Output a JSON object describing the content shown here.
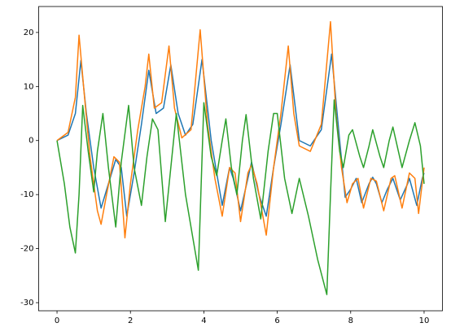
{
  "chart_data": {
    "type": "line",
    "xlim": [
      -0.5,
      10.5
    ],
    "ylim": [
      -31.5,
      24.8
    ],
    "xticks": [
      0,
      2,
      4,
      6,
      8,
      10
    ],
    "yticks": [
      -30,
      -20,
      -10,
      0,
      10,
      20
    ],
    "grid": false,
    "series": [
      {
        "color": "#1f77b4",
        "x": [
          0,
          0.3,
          0.5,
          0.65,
          0.8,
          1.0,
          1.2,
          1.4,
          1.6,
          1.75,
          1.9,
          2.1,
          2.3,
          2.5,
          2.7,
          2.9,
          3.1,
          3.3,
          3.5,
          3.7,
          3.95,
          4.2,
          4.5,
          4.7,
          4.8,
          5.0,
          5.3,
          5.5,
          5.7,
          5.9,
          6.1,
          6.35,
          6.6,
          6.9,
          7.2,
          7.48,
          7.7,
          7.85,
          8.0,
          8.15,
          8.3,
          8.5,
          8.6,
          8.7,
          8.85,
          9.0,
          9.15,
          9.35,
          9.55,
          9.6,
          9.8,
          9.95,
          10
        ],
        "values": [
          0,
          1,
          5,
          14.8,
          5,
          -5,
          -12.5,
          -8,
          -3.5,
          -5,
          -14,
          -6,
          3,
          13,
          5,
          6,
          14,
          5,
          1,
          3,
          15,
          0,
          -12,
          -5,
          -7,
          -13,
          -4,
          -10,
          -14,
          -5,
          3,
          14,
          0,
          -1,
          2,
          16,
          0,
          -10.5,
          -9,
          -7,
          -11.5,
          -8,
          -6.8,
          -8,
          -11.5,
          -9,
          -7,
          -11,
          -8,
          -7,
          -12,
          -7,
          -6
        ]
      },
      {
        "color": "#ff7f0e",
        "x": [
          0,
          0.3,
          0.5,
          0.6,
          0.75,
          0.9,
          1.1,
          1.2,
          1.35,
          1.55,
          1.7,
          1.85,
          2.0,
          2.2,
          2.4,
          2.5,
          2.65,
          2.85,
          3.05,
          3.2,
          3.4,
          3.65,
          3.9,
          4.1,
          4.3,
          4.5,
          4.7,
          4.85,
          5.0,
          5.2,
          5.3,
          5.45,
          5.7,
          5.9,
          6.1,
          6.3,
          6.45,
          6.6,
          6.9,
          7.2,
          7.45,
          7.6,
          7.75,
          7.9,
          8.05,
          8.2,
          8.35,
          8.55,
          8.7,
          8.9,
          9.1,
          9.2,
          9.4,
          9.6,
          9.75,
          9.85,
          10
        ],
        "values": [
          0,
          1.5,
          8,
          19.5,
          8,
          -3,
          -13,
          -15.5,
          -10,
          -3,
          -4,
          -18,
          -8,
          2,
          10,
          16,
          6,
          7,
          17.5,
          6,
          0.5,
          2,
          20.5,
          3,
          -7,
          -14,
          -5,
          -6,
          -15,
          -6,
          -4.5,
          -8,
          -17.5,
          -5,
          5,
          17.5,
          5,
          -1,
          -2,
          3,
          22,
          5,
          -5,
          -11.5,
          -8,
          -7,
          -12.5,
          -7,
          -7.5,
          -13,
          -7,
          -6.5,
          -12.5,
          -6,
          -7,
          -13.5,
          -5
        ]
      },
      {
        "color": "#2ca02c",
        "x": [
          0,
          0.2,
          0.35,
          0.5,
          0.6,
          0.7,
          0.85,
          1.0,
          1.1,
          1.25,
          1.4,
          1.6,
          1.75,
          1.95,
          2.1,
          2.3,
          2.45,
          2.6,
          2.75,
          2.95,
          3.1,
          3.25,
          3.5,
          3.7,
          3.85,
          4.0,
          4.2,
          4.35,
          4.5,
          4.6,
          4.75,
          4.9,
          5.05,
          5.15,
          5.35,
          5.55,
          5.75,
          5.9,
          6.0,
          6.2,
          6.4,
          6.6,
          6.85,
          7.1,
          7.35,
          7.45,
          7.55,
          7.7,
          7.8,
          7.95,
          8.05,
          8.25,
          8.35,
          8.5,
          8.6,
          8.8,
          8.9,
          9.05,
          9.15,
          9.3,
          9.4,
          9.6,
          9.75,
          9.9,
          10
        ],
        "values": [
          0,
          -8,
          -16,
          -20.8,
          -10,
          6.5,
          -2,
          -9.5,
          -2,
          5,
          -5,
          -16,
          -4,
          6.5,
          -5,
          -12,
          -3,
          4,
          2,
          -15,
          -5,
          5,
          -10,
          -18,
          -24,
          7,
          -3,
          -6.5,
          0,
          4,
          -5,
          -10,
          0,
          4.8,
          -7,
          -14.5,
          -2,
          5,
          5,
          -7,
          -13.5,
          -7,
          -14,
          -22,
          -28.5,
          -10,
          7.5,
          -2,
          -5,
          1,
          2,
          -3,
          -5,
          -1,
          2,
          -3,
          -5,
          0,
          2.5,
          -2,
          -5,
          0,
          3.3,
          -1,
          -8
        ]
      }
    ]
  }
}
